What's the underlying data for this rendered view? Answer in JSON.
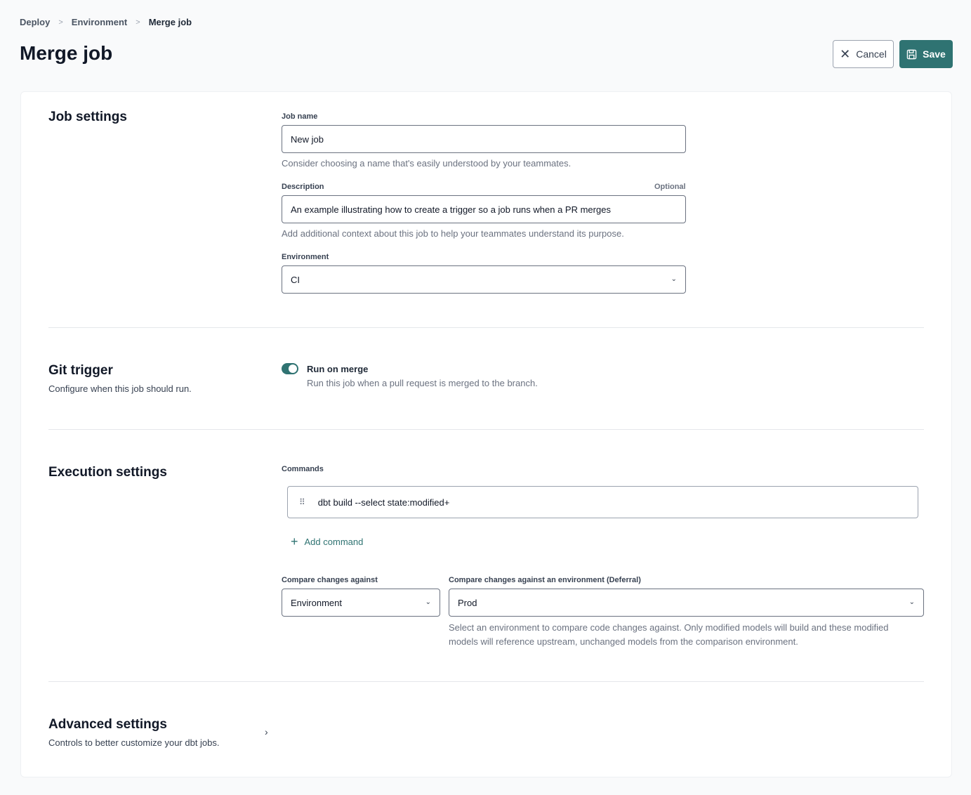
{
  "breadcrumb": [
    "Deploy",
    "Environment",
    "Merge job"
  ],
  "title": "Merge job",
  "actions": {
    "cancel": "Cancel",
    "save": "Save"
  },
  "colors": {
    "accent": "#2f7372"
  },
  "job_settings": {
    "heading": "Job settings",
    "job_name": {
      "label": "Job name",
      "value": "New job",
      "help": "Consider choosing a name that's easily understood by your teammates."
    },
    "description": {
      "label": "Description",
      "optional": "Optional",
      "value": "An example illustrating how to create a trigger so a job runs when a PR merges",
      "help": "Add additional context about this job to help your teammates understand its purpose."
    },
    "environment": {
      "label": "Environment",
      "value": "CI"
    }
  },
  "git_trigger": {
    "heading": "Git trigger",
    "sub": "Configure when this job should run.",
    "toggle_label": "Run on merge",
    "toggle_help": "Run this job when a pull request is merged to the branch.",
    "enabled": true
  },
  "execution": {
    "heading": "Execution settings",
    "commands_label": "Commands",
    "commands": [
      "dbt build --select state:modified+"
    ],
    "add_command": "Add command",
    "compare_label": "Compare changes against",
    "compare_value": "Environment",
    "deferral_label": "Compare changes against an environment (Deferral)",
    "deferral_value": "Prod",
    "deferral_help": "Select an environment to compare code changes against. Only modified models will build and these modified models will reference upstream, unchanged models from the comparison environment."
  },
  "advanced": {
    "heading": "Advanced settings",
    "sub": "Controls to better customize your dbt jobs."
  }
}
